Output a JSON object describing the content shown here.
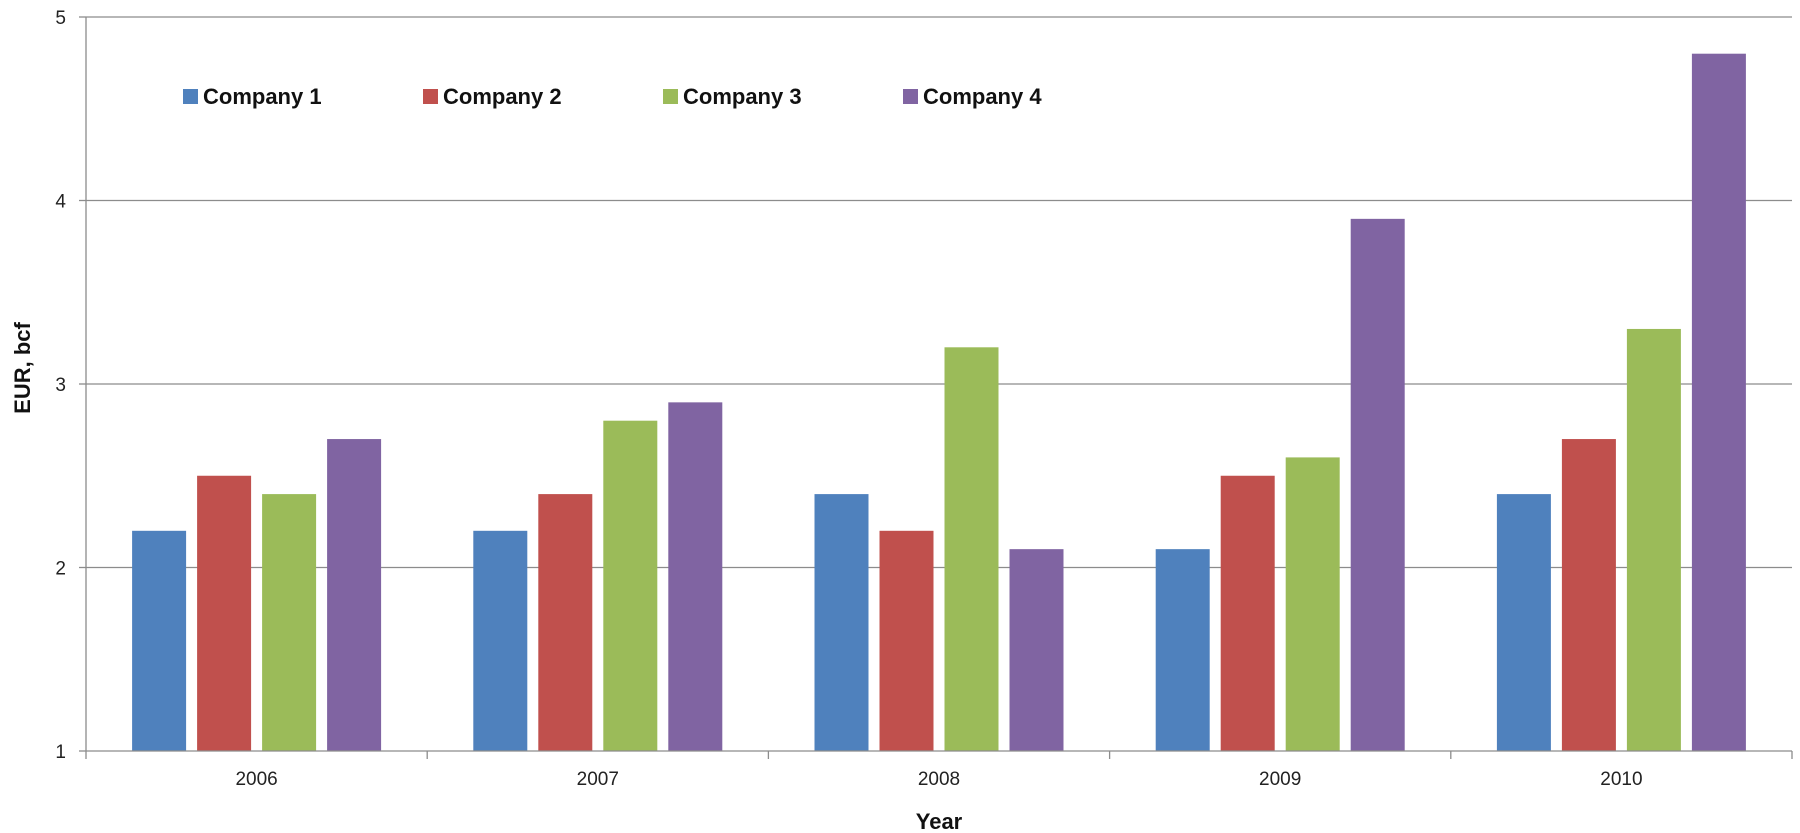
{
  "chart_data": {
    "type": "bar",
    "title": "",
    "xlabel": "Year",
    "ylabel": "EUR, bcf",
    "ylim": [
      1,
      5
    ],
    "yticks": [
      1,
      2,
      3,
      4,
      5
    ],
    "grid": true,
    "legend_position": "top-left",
    "categories": [
      "2006",
      "2007",
      "2008",
      "2009",
      "2010"
    ],
    "series": [
      {
        "name": "Company 1",
        "color": "#4F81BD",
        "values": [
          2.2,
          2.2,
          2.4,
          2.1,
          2.4
        ]
      },
      {
        "name": "Company 2",
        "color": "#C0504D",
        "values": [
          2.5,
          2.4,
          2.2,
          2.5,
          2.7
        ]
      },
      {
        "name": "Company 3",
        "color": "#9BBB59",
        "values": [
          2.4,
          2.8,
          3.2,
          2.6,
          3.3
        ]
      },
      {
        "name": "Company 4",
        "color": "#8064A2",
        "values": [
          2.7,
          2.9,
          2.1,
          3.9,
          4.8
        ]
      }
    ]
  }
}
